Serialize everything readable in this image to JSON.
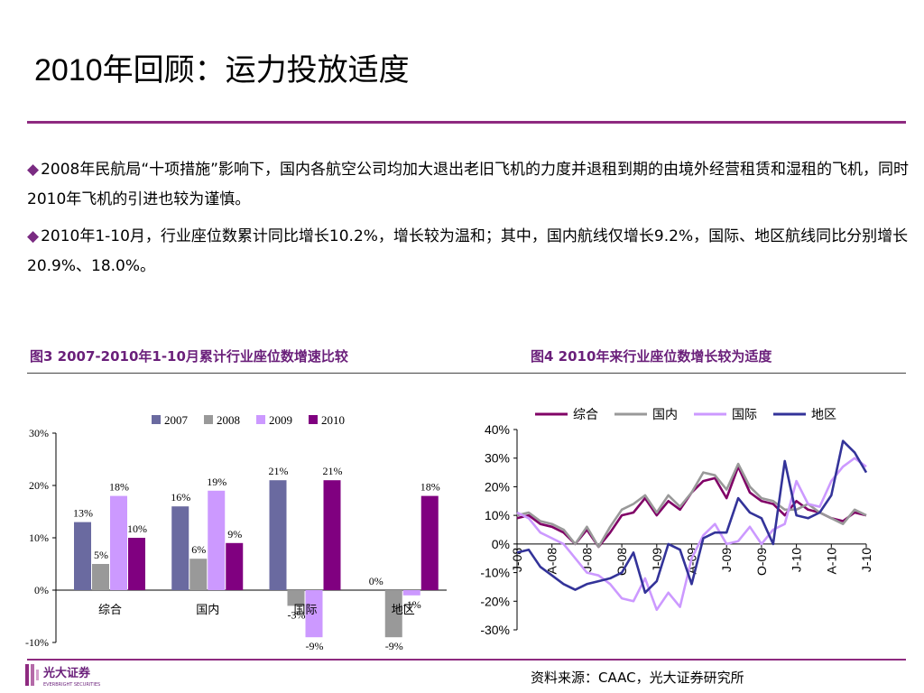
{
  "slide": {
    "title": "2010年回顾：运力投放适度",
    "bullets": [
      "2008年民航局“十项措施”影响下，国内各航空公司均加大退出老旧飞机的力度并退租到期的由境外经营租赁和湿租的飞机，同时2010年飞机的引进也较为谨慎。",
      "2010年1-10月，行业座位数累计同比增长10.2%，增长较为温和；其中，国内航线仅增长9.2%，国际、地区航线同比分别增长20.9%、18.0%。"
    ],
    "bullet_symbol": "◆",
    "source": "资料来源：CAAC，光大证券研究所",
    "logo_text": "光大证券",
    "logo_subtext": "EVERBRIGHT SECURITIES"
  },
  "colors": {
    "accent": "#8e2a80",
    "caption": "#6a1f7a"
  },
  "chart_data": [
    {
      "type": "bar",
      "title": "图3 2007-2010年1-10月累计行业座位数增速比较",
      "categories": [
        "综合",
        "国内",
        "国际",
        "地区"
      ],
      "series": [
        {
          "name": "2007",
          "color": "#6a6aa0",
          "values": [
            13,
            16,
            21,
            0
          ],
          "labels": [
            "13%",
            "16%",
            "21%",
            "0%"
          ]
        },
        {
          "name": "2008",
          "color": "#999999",
          "values": [
            5,
            6,
            -3,
            -9
          ],
          "labels": [
            "5%",
            "6%",
            "-3%",
            "-9%"
          ]
        },
        {
          "name": "2009",
          "color": "#cc99ff",
          "values": [
            18,
            19,
            -9,
            -1
          ],
          "labels": [
            "18%",
            "19%",
            "-9%",
            "-1%"
          ]
        },
        {
          "name": "2010",
          "color": "#800080",
          "values": [
            10,
            9,
            21,
            18
          ],
          "labels": [
            "10%",
            "9%",
            "21%",
            "18%"
          ]
        }
      ],
      "ylim": [
        -10,
        30
      ],
      "yticks": [
        "-10%",
        "0%",
        "10%",
        "20%",
        "30%"
      ],
      "legend": "top"
    },
    {
      "type": "line",
      "title": "图4 2010年来行业座位数增长较为适度",
      "x": [
        "J-08",
        "F-08",
        "M-08",
        "A-08",
        "M-08",
        "J-08",
        "J-08",
        "A-08",
        "S-08",
        "O-08",
        "N-08",
        "D-08",
        "J-09",
        "F-09",
        "M-09",
        "A-09",
        "M-09",
        "J-09",
        "J-09",
        "A-09",
        "S-09",
        "O-09",
        "N-09",
        "D-09",
        "J-10",
        "F-10",
        "M-10",
        "A-10",
        "M-10",
        "J-10",
        "J-10"
      ],
      "xticks": [
        "J-08",
        "A-08",
        "J-08",
        "O-08",
        "J-09",
        "A-09",
        "J-09",
        "O-09",
        "J-10",
        "A-10",
        "J-10"
      ],
      "yticks": [
        "40%",
        "30%",
        "20%",
        "10%",
        "0%",
        "-10%",
        "-20%",
        "-30%"
      ],
      "ylim": [
        -30,
        40
      ],
      "legend": "top",
      "series": [
        {
          "name": "综合",
          "color": "#800066",
          "values": [
            9,
            10,
            7,
            6,
            4,
            0,
            5,
            -1,
            4,
            10,
            11,
            16,
            10,
            15,
            12,
            18,
            22,
            23,
            16,
            27,
            18,
            15,
            14,
            10,
            15,
            12,
            11,
            9,
            8,
            11,
            10
          ]
        },
        {
          "name": "国内",
          "color": "#999999",
          "values": [
            10,
            11,
            8,
            7,
            5,
            0,
            6,
            -1,
            6,
            12,
            14,
            17,
            11,
            17,
            13,
            18,
            25,
            24,
            19,
            28,
            20,
            16,
            15,
            12,
            12,
            14,
            11,
            9,
            7,
            12,
            10
          ]
        },
        {
          "name": "国际",
          "color": "#cc99ff",
          "values": [
            11,
            9,
            4,
            2,
            0,
            -5,
            -10,
            -11,
            -14,
            -19,
            -20,
            -12,
            -23,
            -17,
            -22,
            -5,
            3,
            7,
            0,
            1,
            6,
            0,
            5,
            7,
            22,
            14,
            13,
            22,
            27,
            30,
            27
          ]
        },
        {
          "name": "地区",
          "color": "#333399",
          "values": [
            -3,
            -2,
            -8,
            -11,
            -14,
            -16,
            -14,
            -13,
            -12,
            -10,
            -3,
            -17,
            -13,
            0,
            -2,
            -14,
            2,
            4,
            4,
            16,
            11,
            9,
            0,
            29,
            10,
            9,
            11,
            17,
            36,
            32,
            25
          ]
        }
      ]
    }
  ]
}
